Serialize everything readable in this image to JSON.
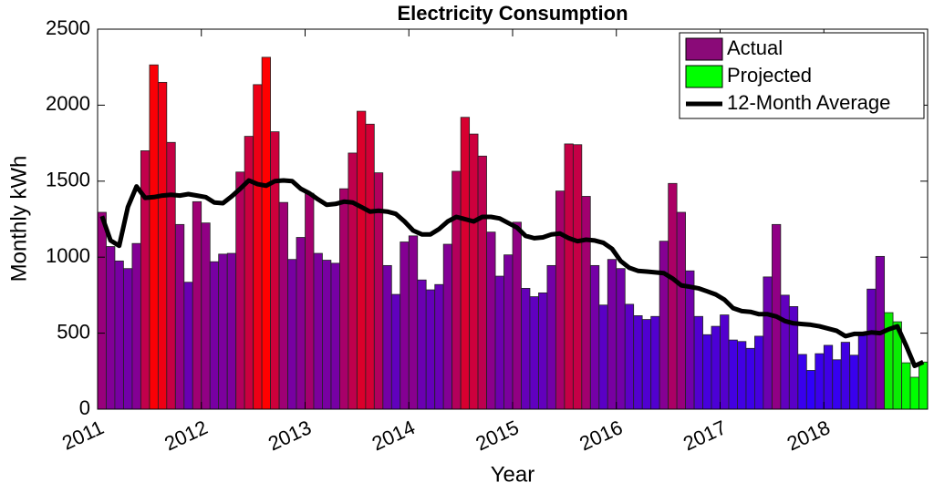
{
  "chart_data": {
    "type": "bar",
    "title": "Electricity Consumption",
    "xlabel": "Year",
    "ylabel": "Monthly kWh",
    "xlim": [
      2011,
      2019
    ],
    "xticks": [
      2011,
      2012,
      2013,
      2014,
      2015,
      2016,
      2017,
      2018
    ],
    "ylim": [
      0,
      2500
    ],
    "yticks": [
      0,
      500,
      1000,
      1500,
      2000,
      2500
    ],
    "legend": "upper right",
    "x": [
      2011.042,
      2011.125,
      2011.208,
      2011.292,
      2011.375,
      2011.458,
      2011.542,
      2011.625,
      2011.708,
      2011.792,
      2011.875,
      2011.958,
      2012.042,
      2012.125,
      2012.208,
      2012.292,
      2012.375,
      2012.458,
      2012.542,
      2012.625,
      2012.708,
      2012.792,
      2012.875,
      2012.958,
      2013.042,
      2013.125,
      2013.208,
      2013.292,
      2013.375,
      2013.458,
      2013.542,
      2013.625,
      2013.708,
      2013.792,
      2013.875,
      2013.958,
      2014.042,
      2014.125,
      2014.208,
      2014.292,
      2014.375,
      2014.458,
      2014.542,
      2014.625,
      2014.708,
      2014.792,
      2014.875,
      2014.958,
      2015.042,
      2015.125,
      2015.208,
      2015.292,
      2015.375,
      2015.458,
      2015.542,
      2015.625,
      2015.708,
      2015.792,
      2015.875,
      2015.958,
      2016.042,
      2016.125,
      2016.208,
      2016.292,
      2016.375,
      2016.458,
      2016.542,
      2016.625,
      2016.708,
      2016.792,
      2016.875,
      2016.958,
      2017.042,
      2017.125,
      2017.208,
      2017.292,
      2017.375,
      2017.458,
      2017.542,
      2017.625,
      2017.708,
      2017.792,
      2017.875,
      2017.958,
      2018.042,
      2018.125,
      2018.208,
      2018.292,
      2018.375,
      2018.458,
      2018.542,
      2018.625,
      2018.708,
      2018.792,
      2018.875,
      2018.958
    ],
    "series": [
      {
        "name": "Actual",
        "type": "bar",
        "color": "#8a0a78",
        "colormap": [
          "#2a00ff",
          "#ff0000"
        ],
        "values": [
          1295,
          1070,
          975,
          925,
          1090,
          1700,
          2265,
          2150,
          1755,
          1215,
          835,
          1365,
          1225,
          970,
          1020,
          1025,
          1560,
          1795,
          2135,
          2315,
          1825,
          1360,
          985,
          1130,
          1420,
          1025,
          980,
          960,
          1450,
          1685,
          1960,
          1875,
          1555,
          945,
          755,
          1100,
          1140,
          850,
          785,
          820,
          1085,
          1565,
          1920,
          1810,
          1665,
          1165,
          875,
          1015,
          1230,
          795,
          740,
          765,
          945,
          1435,
          1745,
          1740,
          1400,
          945,
          685,
          985,
          925,
          690,
          615,
          590,
          610,
          1105,
          1485,
          1295,
          910,
          610,
          490,
          545,
          620,
          455,
          445,
          400,
          480,
          870,
          1215,
          750,
          675,
          360,
          255,
          365,
          420,
          325,
          440,
          355,
          490,
          790,
          1005,
          null,
          null,
          null,
          null,
          null
        ]
      },
      {
        "name": "Projected",
        "type": "bar",
        "color": "#00ff00",
        "colormap": [
          "#00ff00",
          "#3a9a10"
        ],
        "values": [
          null,
          null,
          null,
          null,
          null,
          null,
          null,
          null,
          null,
          null,
          null,
          null,
          null,
          null,
          null,
          null,
          null,
          null,
          null,
          null,
          null,
          null,
          null,
          null,
          null,
          null,
          null,
          null,
          null,
          null,
          null,
          null,
          null,
          null,
          null,
          null,
          null,
          null,
          null,
          null,
          null,
          null,
          null,
          null,
          null,
          null,
          null,
          null,
          null,
          null,
          null,
          null,
          null,
          null,
          null,
          null,
          null,
          null,
          null,
          null,
          null,
          null,
          null,
          null,
          null,
          null,
          null,
          null,
          null,
          null,
          null,
          null,
          null,
          null,
          null,
          null,
          null,
          null,
          null,
          null,
          null,
          null,
          null,
          null,
          null,
          null,
          null,
          null,
          null,
          null,
          null,
          635,
          575,
          305,
          210,
          310
        ]
      },
      {
        "name": "12-Month Average",
        "type": "line",
        "color": "#000000",
        "values": [
          1270,
          1110,
          1075,
          1330,
          1465,
          1390,
          1395,
          1405,
          1410,
          1405,
          1415,
          1405,
          1395,
          1360,
          1355,
          1400,
          1450,
          1505,
          1480,
          1470,
          1500,
          1505,
          1500,
          1450,
          1420,
          1380,
          1345,
          1350,
          1365,
          1360,
          1330,
          1300,
          1305,
          1300,
          1285,
          1235,
          1175,
          1150,
          1150,
          1185,
          1235,
          1265,
          1250,
          1235,
          1265,
          1265,
          1255,
          1225,
          1195,
          1140,
          1125,
          1130,
          1150,
          1155,
          1125,
          1105,
          1115,
          1110,
          1095,
          1055,
          975,
          930,
          910,
          905,
          900,
          895,
          860,
          815,
          805,
          795,
          775,
          755,
          720,
          665,
          645,
          640,
          625,
          625,
          610,
          580,
          565,
          560,
          555,
          545,
          530,
          515,
          480,
          495,
          495,
          505,
          500,
          525,
          545,
          420,
          285,
          310
        ]
      }
    ]
  }
}
